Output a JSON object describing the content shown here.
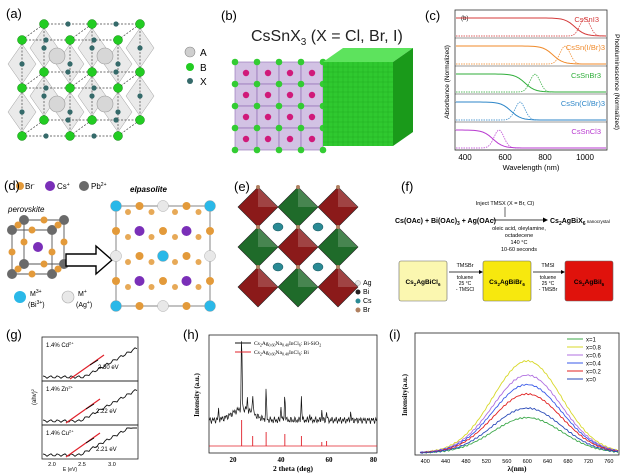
{
  "panel_labels": {
    "a": "(a)",
    "b": "(b)",
    "c": "(c)",
    "d": "(d)",
    "e": "(e)",
    "f": "(f)",
    "g": "(g)",
    "h": "(h)",
    "i": "(i)"
  },
  "a": {
    "legend": [
      "A",
      "B",
      "X"
    ],
    "legend_colors": [
      "#cfcfcf",
      "#22cc22",
      "#356a6a"
    ]
  },
  "b": {
    "title": "CsSnX",
    "title_sub": "3",
    "title_rest": " (X = Cl, Br, I)"
  },
  "c": {
    "inner_label": "(b)",
    "ylabel_left": "Absorbance (Normalized)",
    "ylabel_right": "Photoluminescence (Normalized)",
    "xlabel": "Wavelength (nm)",
    "xticks": [
      "400",
      "600",
      "800",
      "1000"
    ],
    "traces": [
      {
        "name": "CsSnI3",
        "color": "#d43a3a"
      },
      {
        "name": "CsSn(I/Br)3",
        "color": "#f08a2a"
      },
      {
        "name": "CsSnBr3",
        "color": "#2fae3a"
      },
      {
        "name": "CsSn(Cl/Br)3",
        "color": "#2d86c8"
      },
      {
        "name": "CsSnCl3",
        "color": "#b83ad0"
      }
    ]
  },
  "d": {
    "legend_br": "Br",
    "legend_br_sup": "-",
    "legend_cs": "Cs",
    "legend_cs_sup": "+",
    "legend_pb": "Pb",
    "legend_pb_sup": "2+",
    "perovskite": "perovskite",
    "elpasolite": "elpasolite",
    "m3_label": "M",
    "m3_sup": "3+",
    "m3_paren": "(Bi",
    "m3_paren_sup": "3+",
    "m3_close": ")",
    "m1_label": "M",
    "m1_sup": "+",
    "m1_paren": "(Ag",
    "m1_paren_sup": "+",
    "m1_close": ")"
  },
  "e": {
    "legend": [
      "Ag",
      "Bi",
      "Cs",
      "Br"
    ]
  },
  "f": {
    "inject": "Inject TMSX (X = Br, Cl)",
    "reactants": "Cs(OAc) + Bi(OAc)",
    "reactants_sub": "3",
    "reactants_rest": " + Ag(OAc)",
    "product": "Cs",
    "product_sub1": "2",
    "product_mid": "AgBiX",
    "product_sub2": "6",
    "product_note": " nanocrystal",
    "conditions": [
      "oleic acid, oleylamine,",
      "octadecene",
      "140 °C",
      "10-60 seconds"
    ],
    "boxes": [
      {
        "pre": "Cs",
        "sub1": "2",
        "mid": "AgBiCl",
        "sub2": "6",
        "color": "#fbf7b0"
      },
      {
        "pre": "Cs",
        "sub1": "2",
        "mid": "AgBiBr",
        "sub2": "6",
        "color": "#f7e80e"
      },
      {
        "pre": "Cs",
        "sub1": "2",
        "mid": "AgBiI",
        "sub2": "6",
        "color": "#e0120c"
      }
    ],
    "arrow1": [
      "TMSBr",
      "toluene",
      "25 °C",
      "- TMSCl"
    ],
    "arrow2": [
      "TMSI",
      "toluene",
      "25 °C",
      "- TMSBr"
    ]
  },
  "g": {
    "subplots": [
      {
        "dopant": "1.4% Cd",
        "sup": "2+",
        "energy": "2.30 eV"
      },
      {
        "dopant": "1.4% Zn",
        "sup": "2+",
        "energy": "2.22 eV"
      },
      {
        "dopant": "1.4% Cu",
        "sup": "2+",
        "energy": "2.21 eV"
      }
    ],
    "ylabel": "(ahv)",
    "ylabel_sup": "2",
    "xlabel": "E (eV)",
    "xticks": [
      "2.0",
      "2.5",
      "3.0"
    ]
  },
  "h": {
    "legend": [
      {
        "text": "Cs2Ag0.60Na0.40InCl6: Bi-SiO2",
        "color": "#111111"
      },
      {
        "text": "Cs2Ag0.60Na0.40InCl6: Bi",
        "color": "#e0202a"
      }
    ],
    "legend1_parts": {
      "a": "Cs",
      "b": "2",
      "c": "Ag",
      "d": "0.60",
      "e": "Na",
      "f": "0.40",
      "g": "InCl",
      "h": "6",
      "i": ": Bi-SiO",
      "j": "2"
    },
    "legend2_parts": {
      "a": "Cs",
      "b": "2",
      "c": "Ag",
      "d": "0.60",
      "e": "Na",
      "f": "0.40",
      "g": "InCl",
      "h": "6",
      "i": ": Bi"
    },
    "ylabel": "Intensity (a.u.)",
    "xlabel": "2 theta (deg)",
    "xticks": [
      "20",
      "40",
      "60",
      "80"
    ]
  },
  "i": {
    "ylabel": "Intensity(a.u.)",
    "xlabel": "λ(nm)",
    "xticks": [
      "400",
      "440",
      "480",
      "520",
      "560",
      "600",
      "640",
      "680",
      "720",
      "760"
    ],
    "legend": [
      {
        "name": "x=1",
        "color": "#3ca84a"
      },
      {
        "name": "x=0.8",
        "color": "#d8d82a"
      },
      {
        "name": "x=0.6",
        "color": "#b070e0"
      },
      {
        "name": "x=0.4",
        "color": "#3a5ae8"
      },
      {
        "name": "x=0.2",
        "color": "#e02020"
      },
      {
        "name": "x=0",
        "color": "#2a4ab8"
      }
    ]
  }
}
